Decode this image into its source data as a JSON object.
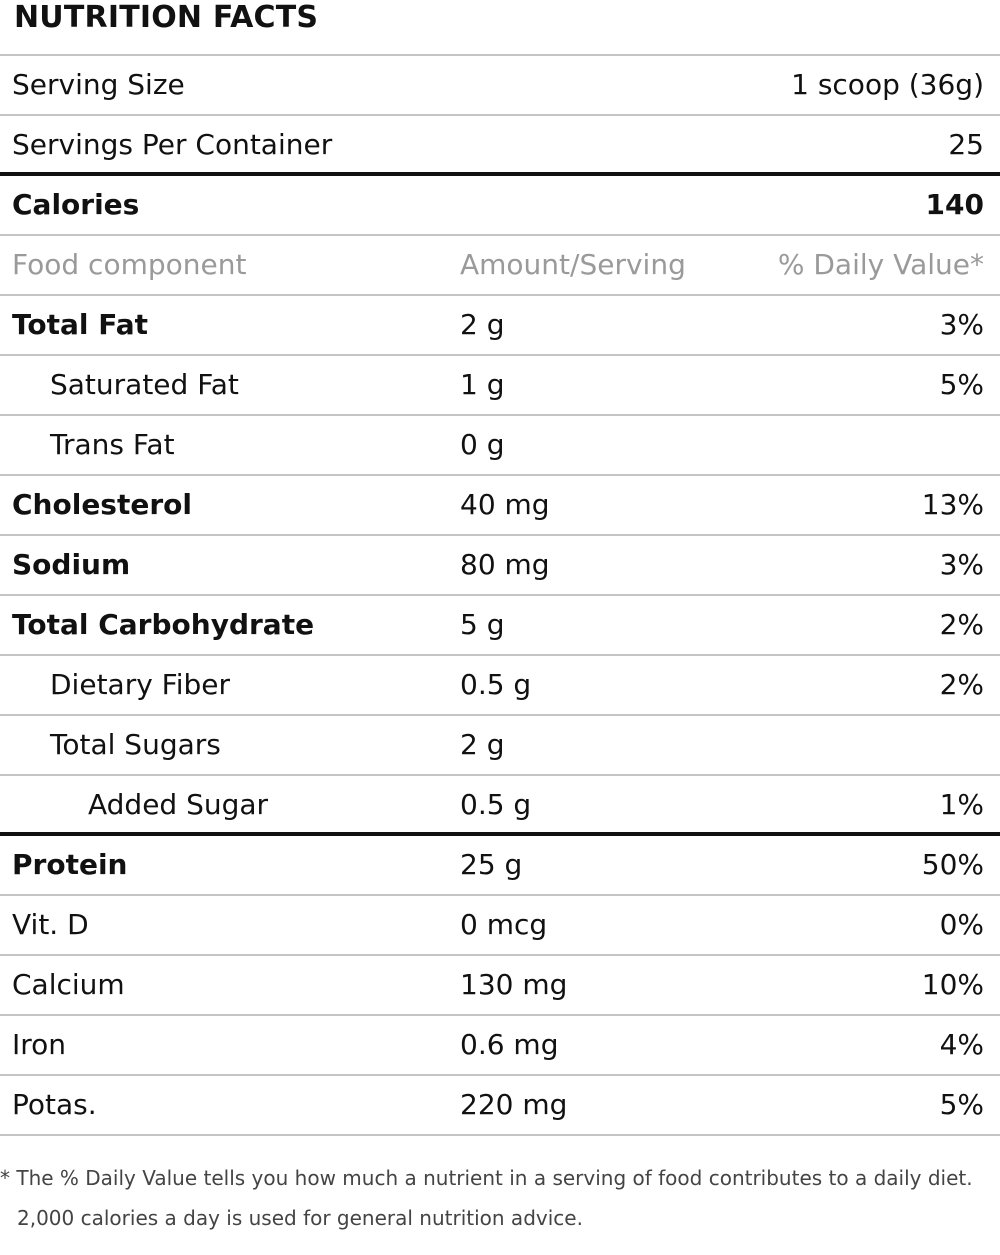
{
  "title": "NUTRITION FACTS",
  "serving_size": {
    "label": "Serving Size",
    "value": "1 scoop (36g)"
  },
  "servings_per_container": {
    "label": "Servings Per Container",
    "value": "25"
  },
  "calories": {
    "label": "Calories",
    "value": "140"
  },
  "header": {
    "component": "Food component",
    "amount": "Amount/Serving",
    "dv": "% Daily Value*"
  },
  "nutrients": [
    {
      "name": "Total Fat",
      "amount": "2 g",
      "dv": "3%"
    },
    {
      "name": "Saturated Fat",
      "amount": "1 g",
      "dv": "5%"
    },
    {
      "name": "Trans Fat",
      "amount": "0 g",
      "dv": ""
    },
    {
      "name": "Cholesterol",
      "amount": "40 mg",
      "dv": "13%"
    },
    {
      "name": "Sodium",
      "amount": "80 mg",
      "dv": "3%"
    },
    {
      "name": "Total Carbohydrate",
      "amount": "5 g",
      "dv": "2%"
    },
    {
      "name": "Dietary Fiber",
      "amount": "0.5 g",
      "dv": "2%"
    },
    {
      "name": "Total Sugars",
      "amount": "2 g",
      "dv": ""
    },
    {
      "name": "Added Sugar",
      "amount": "0.5 g",
      "dv": "1%"
    },
    {
      "name": "Protein",
      "amount": "25 g",
      "dv": "50%"
    },
    {
      "name": "Vit. D",
      "amount": "0 mcg",
      "dv": "0%"
    },
    {
      "name": "Calcium",
      "amount": "130 mg",
      "dv": "10%"
    },
    {
      "name": "Iron",
      "amount": "0.6 mg",
      "dv": "4%"
    },
    {
      "name": "Potas.",
      "amount": "220 mg",
      "dv": "5%"
    }
  ],
  "footnote": {
    "line1": "* The % Daily Value tells you how much a nutrient in a serving of food contributes to a daily diet.",
    "line2": "2,000 calories a day is used for general nutrition advice."
  }
}
